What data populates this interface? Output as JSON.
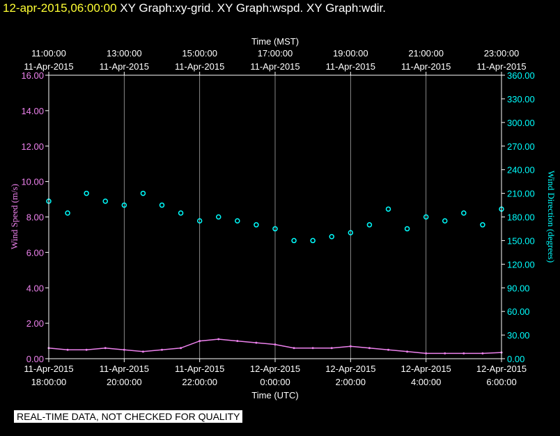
{
  "header": {
    "timestamp": "12-apr-2015,06:00:00",
    "graphs": "XY Graph:xy-grid.  XY Graph:wspd.  XY Graph:wdir."
  },
  "warning": "REAL-TIME DATA, NOT CHECKED FOR QUALITY",
  "colors": {
    "background": "#000000",
    "wind_speed": "#ee82ee",
    "wind_direction": "#00ffff",
    "timestamp": "#ffff33"
  },
  "chart_data": {
    "type": "scatter",
    "top_axis": {
      "label": "Time (MST)",
      "ticks": [
        {
          "time": "11:00:00",
          "date": "11-Apr-2015"
        },
        {
          "time": "13:00:00",
          "date": "11-Apr-2015"
        },
        {
          "time": "15:00:00",
          "date": "11-Apr-2015"
        },
        {
          "time": "17:00:00",
          "date": "11-Apr-2015"
        },
        {
          "time": "19:00:00",
          "date": "11-Apr-2015"
        },
        {
          "time": "21:00:00",
          "date": "11-Apr-2015"
        },
        {
          "time": "23:00:00",
          "date": "11-Apr-2015"
        }
      ]
    },
    "bottom_axis": {
      "label": "Time (UTC)",
      "ticks": [
        {
          "date": "11-Apr-2015",
          "time": "18:00:00"
        },
        {
          "date": "11-Apr-2015",
          "time": "20:00:00"
        },
        {
          "date": "11-Apr-2015",
          "time": "22:00:00"
        },
        {
          "date": "12-Apr-2015",
          "time": "0:00:00"
        },
        {
          "date": "12-Apr-2015",
          "time": "2:00:00"
        },
        {
          "date": "12-Apr-2015",
          "time": "4:00:00"
        },
        {
          "date": "12-Apr-2015",
          "time": "6:00:00"
        }
      ]
    },
    "x_range_hours_utc": [
      18,
      30
    ],
    "grid": true,
    "left_axis": {
      "label": "Wind Speed (m/s)",
      "ylim": [
        0,
        16
      ],
      "ticks": [
        "0.00",
        "2.00",
        "4.00",
        "6.00",
        "8.00",
        "10.00",
        "12.00",
        "14.00",
        "16.00"
      ]
    },
    "right_axis": {
      "label": "Wind Direction (degrees)",
      "ylim": [
        0,
        360
      ],
      "ticks": [
        "0.00",
        "30.00",
        "60.00",
        "90.00",
        "120.00",
        "150.00",
        "180.00",
        "210.00",
        "240.00",
        "270.00",
        "300.00",
        "330.00",
        "360.00"
      ]
    },
    "series": [
      {
        "name": "Wind Speed",
        "axis": "left",
        "style": "line",
        "x_hours_utc": [
          18.0,
          18.5,
          19.0,
          19.5,
          20.0,
          20.5,
          21.0,
          21.5,
          22.0,
          22.5,
          23.0,
          23.5,
          24.0,
          24.5,
          25.0,
          25.5,
          26.0,
          26.5,
          27.0,
          27.5,
          28.0,
          28.5,
          29.0,
          29.5,
          30.0
        ],
        "values": [
          0.6,
          0.5,
          0.5,
          0.6,
          0.5,
          0.4,
          0.5,
          0.6,
          1.0,
          1.1,
          1.0,
          0.9,
          0.8,
          0.6,
          0.6,
          0.6,
          0.7,
          0.6,
          0.5,
          0.4,
          0.3,
          0.3,
          0.3,
          0.3,
          0.35
        ]
      },
      {
        "name": "Wind Direction",
        "axis": "right",
        "style": "points",
        "x_hours_utc": [
          18.0,
          18.5,
          19.0,
          19.5,
          20.0,
          20.5,
          21.0,
          21.5,
          22.0,
          22.5,
          23.0,
          23.5,
          24.0,
          24.5,
          25.0,
          25.5,
          26.0,
          26.5,
          27.0,
          27.5,
          28.0,
          28.5,
          29.0,
          29.5,
          30.0
        ],
        "values": [
          200,
          185,
          210,
          200,
          195,
          210,
          195,
          185,
          175,
          180,
          175,
          170,
          165,
          150,
          150,
          155,
          160,
          170,
          190,
          165,
          180,
          175,
          185,
          170,
          190
        ]
      }
    ]
  }
}
